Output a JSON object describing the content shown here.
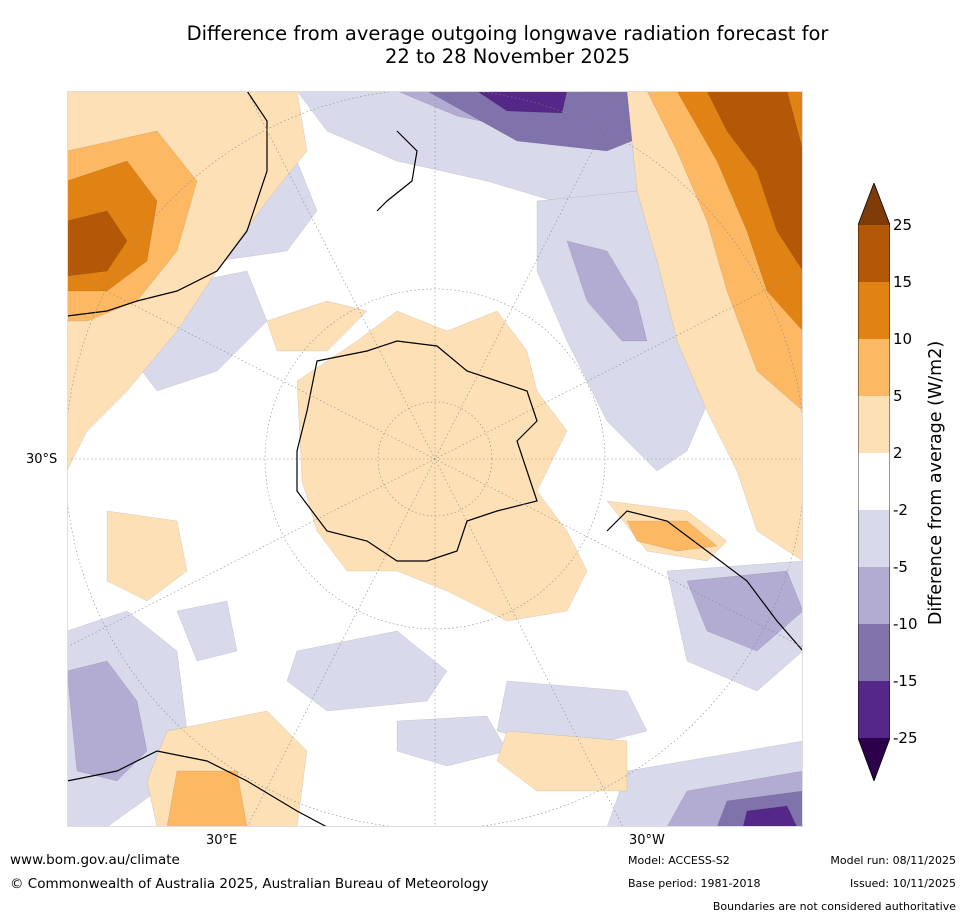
{
  "title": {
    "line1": "Difference from average outgoing longwave radiation forecast for",
    "line2": "22 to 28 November 2025"
  },
  "map": {
    "projection": "south-polar-stereographic",
    "labels": {
      "lat": "30°S",
      "lon_east": "30°E",
      "lon_west": "30°W"
    }
  },
  "colorbar": {
    "title": "Difference from average (W/m2)",
    "ticks": [
      "25",
      "15",
      "10",
      "5",
      "2",
      "-2",
      "-5",
      "-10",
      "-15",
      "-25"
    ],
    "colors": {
      "over": "#7f3b08",
      "b15_25": "#b35806",
      "b10_15": "#e08214",
      "b5_10": "#fdb863",
      "b2_5": "#fee0b6",
      "neutral": "#ffffff",
      "bm5_m2": "#d8daeb",
      "bm10_m5": "#b2abd2",
      "bm15_m10": "#8073ac",
      "bm25_m15": "#542788",
      "under": "#2d004b"
    }
  },
  "footer": {
    "url": "www.bom.gov.au/climate",
    "copyright": "© Commonwealth of Australia 2025, Australian Bureau of Meteorology",
    "model": "Model: ACCESS-S2",
    "base_period": "Base period: 1981-2018",
    "model_run": "Model run: 08/11/2025",
    "issued": "Issued: 10/11/2025",
    "disclaimer": "Boundaries are not considered authoritative"
  }
}
